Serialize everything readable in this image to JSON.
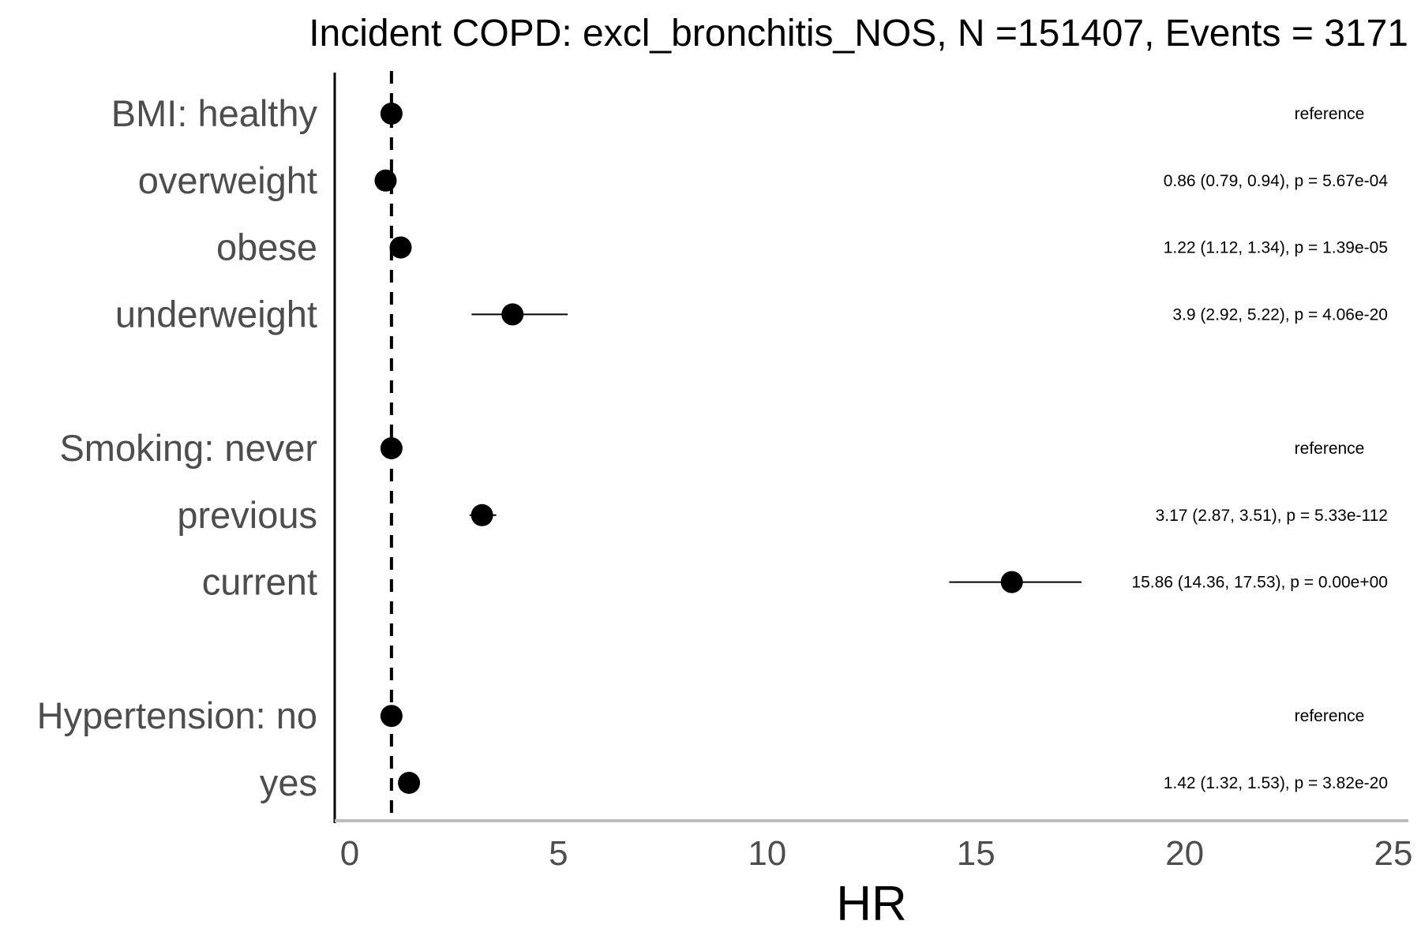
{
  "chart_data": {
    "type": "forest",
    "title": "Incident COPD: excl_bronchitis_NOS, N =151407, Events = 3171",
    "xlabel": "HR",
    "ylabel": "",
    "xlim": [
      0,
      25
    ],
    "xticks": [
      0,
      5,
      10,
      15,
      20,
      25
    ],
    "xtick_labels": [
      "0",
      "5",
      "10",
      "15",
      "20",
      "25"
    ],
    "reference_line": 1,
    "rows": [
      {
        "label": "BMI: healthy",
        "hr": 1.0,
        "lower": 1.0,
        "upper": 1.0,
        "annotation": "reference"
      },
      {
        "label": "overweight",
        "hr": 0.86,
        "lower": 0.79,
        "upper": 0.94,
        "annotation": "0.86 (0.79, 0.94), p = 5.67e-04"
      },
      {
        "label": "obese",
        "hr": 1.22,
        "lower": 1.12,
        "upper": 1.34,
        "annotation": "1.22 (1.12, 1.34), p = 1.39e-05"
      },
      {
        "label": "underweight",
        "hr": 3.9,
        "lower": 2.92,
        "upper": 5.22,
        "annotation": "3.9 (2.92, 5.22), p = 4.06e-20"
      },
      {
        "label": "",
        "hr": null,
        "lower": null,
        "upper": null,
        "annotation": ""
      },
      {
        "label": "Smoking: never",
        "hr": 1.0,
        "lower": 1.0,
        "upper": 1.0,
        "annotation": "reference"
      },
      {
        "label": "previous",
        "hr": 3.17,
        "lower": 2.87,
        "upper": 3.51,
        "annotation": "3.17 (2.87, 3.51), p = 5.33e-112"
      },
      {
        "label": "current",
        "hr": 15.86,
        "lower": 14.36,
        "upper": 17.53,
        "annotation": "15.86 (14.36, 17.53), p = 0.00e+00"
      },
      {
        "label": "",
        "hr": null,
        "lower": null,
        "upper": null,
        "annotation": ""
      },
      {
        "label": "Hypertension: no",
        "hr": 1.0,
        "lower": 1.0,
        "upper": 1.0,
        "annotation": "reference"
      },
      {
        "label": "yes",
        "hr": 1.42,
        "lower": 1.32,
        "upper": 1.53,
        "annotation": "1.42 (1.32, 1.53), p = 3.82e-20"
      }
    ],
    "colors": {
      "point": "#000000",
      "axis_y": "#000000",
      "axis_x": "#bebebe",
      "tick_text": "#4d4d4d"
    }
  }
}
